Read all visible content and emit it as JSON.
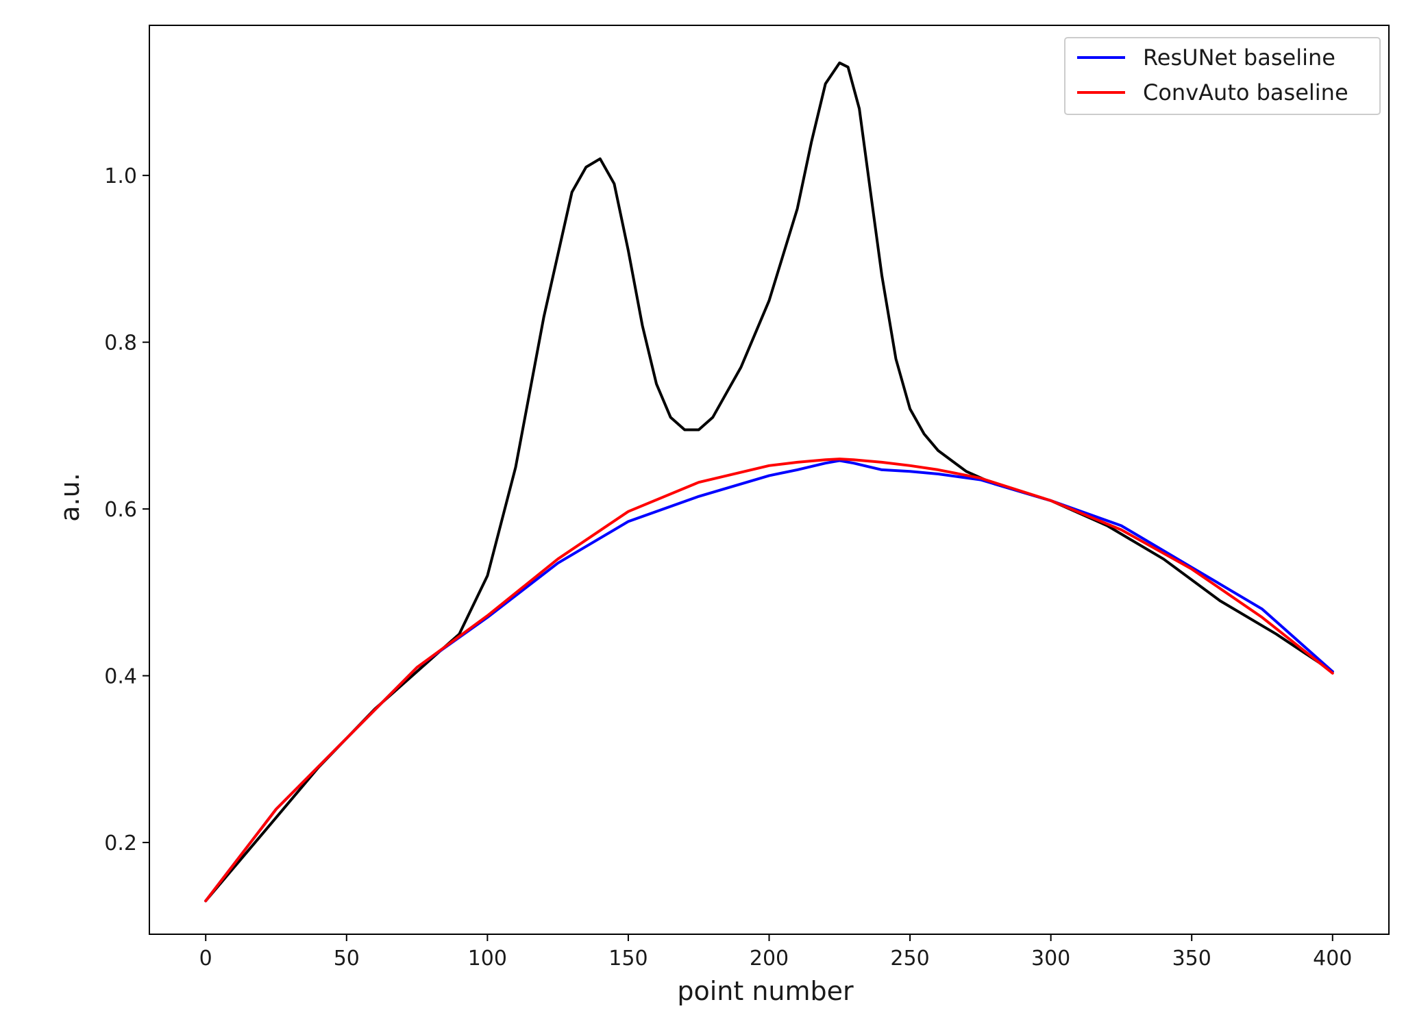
{
  "chart_data": {
    "type": "line",
    "title": "",
    "xlabel": "point number",
    "ylabel": "a.u.",
    "xlim": [
      -20,
      420
    ],
    "ylim": [
      0.09,
      1.18
    ],
    "xticks": [
      0,
      50,
      100,
      150,
      200,
      250,
      300,
      350,
      400
    ],
    "yticks": [
      0.2,
      0.4,
      0.6,
      0.8,
      1.0
    ],
    "xtick_labels": [
      "0",
      "50",
      "100",
      "150",
      "200",
      "250",
      "300",
      "350",
      "400"
    ],
    "ytick_labels": [
      "0.2",
      "0.4",
      "0.6",
      "0.8",
      "1.0"
    ],
    "grid": false,
    "legend_position": "top-right",
    "series": [
      {
        "color": "#000000",
        "x": [
          0,
          20,
          40,
          60,
          80,
          90,
          100,
          110,
          120,
          130,
          135,
          140,
          145,
          150,
          155,
          160,
          165,
          170,
          175,
          180,
          185,
          190,
          200,
          210,
          215,
          220,
          225,
          228,
          232,
          236,
          240,
          245,
          250,
          255,
          260,
          270,
          280,
          300,
          320,
          340,
          360,
          380,
          400
        ],
        "y": [
          0.13,
          0.21,
          0.29,
          0.36,
          0.42,
          0.45,
          0.52,
          0.65,
          0.83,
          0.98,
          1.01,
          1.02,
          0.99,
          0.91,
          0.82,
          0.75,
          0.71,
          0.695,
          0.695,
          0.71,
          0.74,
          0.77,
          0.85,
          0.96,
          1.04,
          1.11,
          1.135,
          1.13,
          1.08,
          0.98,
          0.88,
          0.78,
          0.72,
          0.69,
          0.67,
          0.645,
          0.63,
          0.61,
          0.58,
          0.54,
          0.49,
          0.45,
          0.405
        ]
      },
      {
        "name": "ResUNet baseline",
        "color": "#0000ff",
        "x": [
          0,
          25,
          50,
          75,
          100,
          125,
          150,
          175,
          200,
          210,
          220,
          225,
          230,
          240,
          250,
          260,
          275,
          300,
          325,
          350,
          375,
          400
        ],
        "y": [
          0.13,
          0.24,
          0.325,
          0.41,
          0.47,
          0.535,
          0.585,
          0.615,
          0.64,
          0.647,
          0.655,
          0.658,
          0.655,
          0.647,
          0.645,
          0.642,
          0.635,
          0.61,
          0.58,
          0.53,
          0.48,
          0.405
        ]
      },
      {
        "name": "ConvAuto baseline",
        "color": "#ff0000",
        "x": [
          0,
          25,
          50,
          75,
          100,
          125,
          150,
          175,
          200,
          210,
          220,
          225,
          230,
          240,
          250,
          260,
          275,
          300,
          325,
          350,
          375,
          400
        ],
        "y": [
          0.13,
          0.24,
          0.325,
          0.41,
          0.472,
          0.54,
          0.597,
          0.632,
          0.652,
          0.656,
          0.659,
          0.66,
          0.659,
          0.656,
          0.652,
          0.647,
          0.637,
          0.61,
          0.575,
          0.528,
          0.47,
          0.403
        ]
      }
    ]
  }
}
